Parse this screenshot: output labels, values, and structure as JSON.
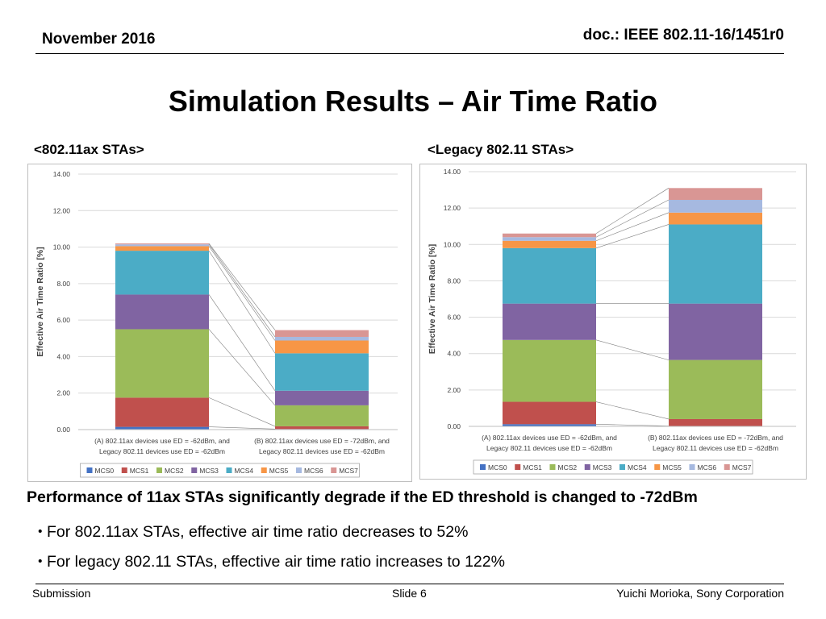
{
  "header": {
    "date": "November 2016",
    "doc": "doc.: IEEE 802.11-16/1451r0"
  },
  "title": "Simulation Results – Air Time Ratio",
  "subtitles": {
    "left": "<802.11ax STAs>",
    "right": "<Legacy 802.11 STAs>"
  },
  "headline": "Performance of 11ax STAs significantly degrade if the ED threshold is changed to -72dBm",
  "bullets": [
    "For 802.11ax STAs,  effective air time ratio decreases to 52%",
    "For legacy 802.11 STAs,  effective air time ratio increases to 122%"
  ],
  "bullet_symbol": "・",
  "footer": {
    "left": "Submission",
    "center": "Slide 6",
    "right": "Yuichi Morioka, Sony Corporation"
  },
  "colors": {
    "MCS0": "#4472c4",
    "MCS1": "#c0504d",
    "MCS2": "#9bbb59",
    "MCS3": "#8064a2",
    "MCS4": "#4bacc6",
    "MCS5": "#f79646",
    "MCS6": "#a6b9e0",
    "MCS7": "#d99694"
  },
  "chart_data": [
    {
      "type": "bar",
      "stacked": true,
      "ylabel": "Effective Air Time Ratio [%]",
      "ylim": [
        0,
        14
      ],
      "yticks": [
        "0.00",
        "2.00",
        "4.00",
        "6.00",
        "8.00",
        "10.00",
        "12.00",
        "14.00"
      ],
      "categories": [
        [
          "(A) 802.11ax devices use ED = -62dBm, and",
          "Legacy 802.11 devices use ED = -62dBm"
        ],
        [
          "(B) 802.11ax devices use ED = -72dBm, and",
          "Legacy 802.11 devices use ED = -62dBm"
        ]
      ],
      "series": [
        {
          "name": "MCS0",
          "values": [
            0.15,
            0.03
          ]
        },
        {
          "name": "MCS1",
          "values": [
            1.6,
            0.15
          ]
        },
        {
          "name": "MCS2",
          "values": [
            3.75,
            1.15
          ]
        },
        {
          "name": "MCS3",
          "values": [
            1.9,
            0.8
          ]
        },
        {
          "name": "MCS4",
          "values": [
            2.4,
            2.05
          ]
        },
        {
          "name": "MCS5",
          "values": [
            0.25,
            0.7
          ]
        },
        {
          "name": "MCS6",
          "values": [
            0.1,
            0.2
          ]
        },
        {
          "name": "MCS7",
          "values": [
            0.05,
            0.37
          ]
        }
      ],
      "legend": "bottom"
    },
    {
      "type": "bar",
      "stacked": true,
      "ylabel": "Effective Air Time Ratio [%]",
      "ylim": [
        0,
        14
      ],
      "yticks": [
        "0.00",
        "2.00",
        "4.00",
        "6.00",
        "8.00",
        "10.00",
        "12.00",
        "14.00"
      ],
      "categories": [
        [
          "(A) 802.11ax devices use ED = -62dBm, and",
          "Legacy 802.11 devices use ED = -62dBm"
        ],
        [
          "(B) 802.11ax devices use ED = -72dBm, and",
          "Legacy 802.11 devices use ED = -62dBm"
        ]
      ],
      "series": [
        {
          "name": "MCS0",
          "values": [
            0.12,
            0.02
          ]
        },
        {
          "name": "MCS1",
          "values": [
            1.23,
            0.38
          ]
        },
        {
          "name": "MCS2",
          "values": [
            3.4,
            3.25
          ]
        },
        {
          "name": "MCS3",
          "values": [
            2.0,
            3.1
          ]
        },
        {
          "name": "MCS4",
          "values": [
            3.05,
            4.35
          ]
        },
        {
          "name": "MCS5",
          "values": [
            0.4,
            0.65
          ]
        },
        {
          "name": "MCS6",
          "values": [
            0.2,
            0.7
          ]
        },
        {
          "name": "MCS7",
          "values": [
            0.2,
            0.65
          ]
        }
      ],
      "legend": "bottom"
    }
  ]
}
